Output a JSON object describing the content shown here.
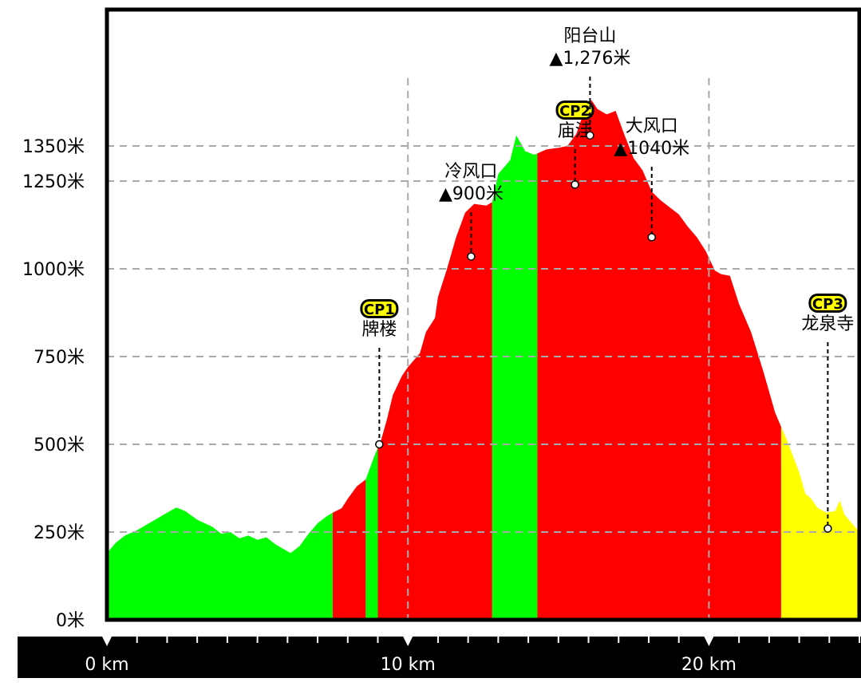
{
  "chart_data": {
    "type": "area",
    "ylim": [
      0,
      1500
    ],
    "xlim": [
      0,
      25
    ],
    "yticks": [
      {
        "value": 0,
        "label": "0米"
      },
      {
        "value": 250,
        "label": "250米"
      },
      {
        "value": 500,
        "label": "500米"
      },
      {
        "value": 750,
        "label": "750米"
      },
      {
        "value": 1000,
        "label": "1000米"
      },
      {
        "value": 1250,
        "label": "1250米"
      },
      {
        "value": 1350,
        "label": "1350米"
      }
    ],
    "xticks": [
      {
        "value": 0,
        "label": "0 km"
      },
      {
        "value": 10,
        "label": "10 km"
      },
      {
        "value": 20,
        "label": "20 km"
      }
    ],
    "minor_tick_step_km": 1,
    "grid": true,
    "profile": [
      [
        0.0,
        190
      ],
      [
        0.3,
        220
      ],
      [
        0.6,
        240
      ],
      [
        1.0,
        255
      ],
      [
        1.5,
        280
      ],
      [
        2.0,
        305
      ],
      [
        2.3,
        320
      ],
      [
        2.6,
        310
      ],
      [
        3.0,
        285
      ],
      [
        3.5,
        265
      ],
      [
        3.8,
        245
      ],
      [
        4.1,
        250
      ],
      [
        4.4,
        232
      ],
      [
        4.7,
        240
      ],
      [
        5.0,
        228
      ],
      [
        5.3,
        235
      ],
      [
        5.6,
        215
      ],
      [
        5.9,
        200
      ],
      [
        6.1,
        190
      ],
      [
        6.4,
        210
      ],
      [
        6.7,
        245
      ],
      [
        7.0,
        275
      ],
      [
        7.3,
        295
      ],
      [
        7.5,
        305
      ],
      [
        7.8,
        318
      ],
      [
        8.0,
        345
      ],
      [
        8.3,
        380
      ],
      [
        8.6,
        400
      ],
      [
        8.9,
        470
      ],
      [
        9.1,
        510
      ],
      [
        9.3,
        570
      ],
      [
        9.5,
        640
      ],
      [
        9.8,
        695
      ],
      [
        10.0,
        720
      ],
      [
        10.4,
        760
      ],
      [
        10.6,
        820
      ],
      [
        10.9,
        860
      ],
      [
        11.0,
        920
      ],
      [
        11.3,
        1000
      ],
      [
        11.6,
        1090
      ],
      [
        11.9,
        1160
      ],
      [
        12.2,
        1185
      ],
      [
        12.6,
        1180
      ],
      [
        12.8,
        1190
      ],
      [
        13.0,
        1270
      ],
      [
        13.4,
        1310
      ],
      [
        13.6,
        1380
      ],
      [
        13.9,
        1335
      ],
      [
        14.2,
        1325
      ],
      [
        14.6,
        1340
      ],
      [
        15.0,
        1345
      ],
      [
        15.3,
        1350
      ],
      [
        15.6,
        1385
      ],
      [
        15.9,
        1460
      ],
      [
        16.1,
        1480
      ],
      [
        16.3,
        1455
      ],
      [
        16.6,
        1440
      ],
      [
        16.9,
        1450
      ],
      [
        17.2,
        1380
      ],
      [
        17.5,
        1315
      ],
      [
        17.8,
        1280
      ],
      [
        18.1,
        1220
      ],
      [
        18.4,
        1195
      ],
      [
        18.7,
        1175
      ],
      [
        19.0,
        1155
      ],
      [
        19.3,
        1120
      ],
      [
        19.6,
        1090
      ],
      [
        19.9,
        1050
      ],
      [
        20.2,
        995
      ],
      [
        20.4,
        985
      ],
      [
        20.7,
        980
      ],
      [
        21.0,
        900
      ],
      [
        21.4,
        820
      ],
      [
        21.8,
        710
      ],
      [
        22.2,
        590
      ],
      [
        22.6,
        510
      ],
      [
        23.0,
        420
      ],
      [
        23.2,
        360
      ],
      [
        23.4,
        345
      ],
      [
        23.6,
        320
      ],
      [
        23.9,
        305
      ],
      [
        24.2,
        310
      ],
      [
        24.35,
        340
      ],
      [
        24.5,
        300
      ],
      [
        24.8,
        270
      ],
      [
        25.0,
        250
      ]
    ],
    "segments": [
      {
        "from": 0,
        "to": 7.5,
        "color": "#00ff00"
      },
      {
        "from": 7.5,
        "to": 8.6,
        "color": "#ff0000"
      },
      {
        "from": 8.6,
        "to": 9.0,
        "color": "#00ff00"
      },
      {
        "from": 9.0,
        "to": 12.8,
        "color": "#ff0000"
      },
      {
        "from": 12.8,
        "to": 14.3,
        "color": "#00ff00"
      },
      {
        "from": 14.3,
        "to": 22.4,
        "color": "#ff0000"
      },
      {
        "from": 22.4,
        "to": 25,
        "color": "#ffff00"
      }
    ],
    "annotations": [
      {
        "x": 9.05,
        "y": 500,
        "badge": "CP1",
        "line1": "牌楼",
        "line2": ""
      },
      {
        "x": 12.1,
        "y": 1035,
        "badge": "",
        "line1": "冷风口",
        "line2": "▲900米"
      },
      {
        "x": 15.55,
        "y": 1240,
        "badge": "CP2",
        "line1": "庙洼",
        "line2": ""
      },
      {
        "x": 16.05,
        "y": 1380,
        "badge": "",
        "line1": "阳台山",
        "line2": "▲1,276米"
      },
      {
        "x": 18.1,
        "y": 1090,
        "badge": "",
        "line1": "大风口",
        "line2": "▲1040米"
      },
      {
        "x": 23.95,
        "y": 260,
        "badge": "CP3",
        "line1": "龙泉寺",
        "line2": ""
      }
    ],
    "colors": {
      "axis": "#000000",
      "grid": "#aaaaaa",
      "badge": "#ffff00"
    }
  }
}
